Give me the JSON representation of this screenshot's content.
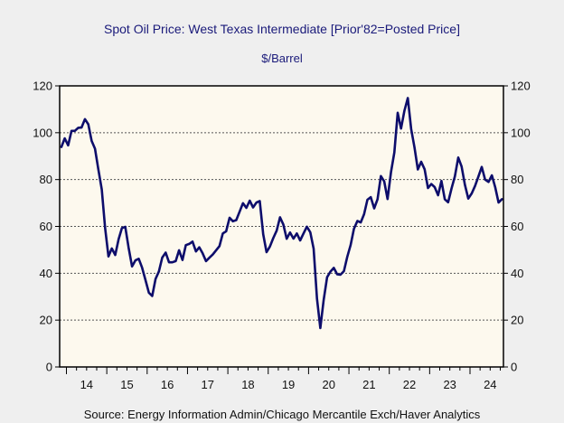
{
  "header": {
    "title": "Spot Oil Price: West Texas Intermediate [Prior'82=Posted Price]",
    "subtitle": "$/Barrel"
  },
  "footer": {
    "source": "Source:  Energy Information Admin/Chicago Mercantile Exch/Haver Analytics"
  },
  "colors": {
    "line": "#0d0d6b",
    "plot_background": "#fdf9ee",
    "page_background": "#efefef",
    "title_text": "#1a1a7a"
  },
  "chart_data": {
    "type": "line",
    "title": "Spot Oil Price: West Texas Intermediate [Prior'82=Posted Price]",
    "subtitle": "$/Barrel",
    "xlabel": "",
    "ylabel": "$/Barrel",
    "frequency": "monthly",
    "x_start": "2013-11",
    "ylim": [
      0,
      120
    ],
    "y_ticks": [
      0,
      20,
      40,
      60,
      80,
      100,
      120
    ],
    "y_tick_labels": [
      "0",
      "20",
      "40",
      "60",
      "80",
      "100",
      "120"
    ],
    "x_tick_labels": [
      "14",
      "15",
      "16",
      "17",
      "18",
      "19",
      "20",
      "21",
      "22",
      "23",
      "24"
    ],
    "x_tick_years": [
      2014,
      2015,
      2016,
      2017,
      2018,
      2019,
      2020,
      2021,
      2022,
      2023,
      2024
    ],
    "grid": "horizontal dashed",
    "dual_y_axis": true,
    "legend": "none",
    "series": [
      {
        "name": "WTI Spot Price",
        "values": [
          93.9,
          97.6,
          94.6,
          100.8,
          100.8,
          102.1,
          102.2,
          105.8,
          103.6,
          96.5,
          93.2,
          84.4,
          75.8,
          59.3,
          47.2,
          50.6,
          47.8,
          54.5,
          59.3,
          59.8,
          50.9,
          42.9,
          45.5,
          46.2,
          42.4,
          37.2,
          31.7,
          30.3,
          37.6,
          40.8,
          46.7,
          48.8,
          44.7,
          44.7,
          45.2,
          49.8,
          45.7,
          52.0,
          52.5,
          53.5,
          49.3,
          51.1,
          48.5,
          45.2,
          46.6,
          48.0,
          49.8,
          51.6,
          57.0,
          57.9,
          63.7,
          62.2,
          62.7,
          66.3,
          69.9,
          67.9,
          71.0,
          68.1,
          70.2,
          70.8,
          56.7,
          49.0,
          51.4,
          55.0,
          58.2,
          63.9,
          60.8,
          54.7,
          57.4,
          54.8,
          57.0,
          54.0,
          57.0,
          59.9,
          57.5,
          50.5,
          29.2,
          16.6,
          28.6,
          38.3,
          40.7,
          42.3,
          39.6,
          39.4,
          40.9,
          47.0,
          52.0,
          59.0,
          62.3,
          61.7,
          65.2,
          71.4,
          72.5,
          67.7,
          71.6,
          81.5,
          79.2,
          71.7,
          83.2,
          91.6,
          108.5,
          101.8,
          109.3,
          114.8,
          101.6,
          93.7,
          84.3,
          87.6,
          84.4,
          76.4,
          78.1,
          76.8,
          73.3,
          79.4,
          71.6,
          70.3,
          76.1,
          81.4,
          89.4,
          85.6,
          77.7,
          71.9,
          74.1,
          77.3,
          81.3,
          85.4,
          80.0,
          79.0,
          81.8,
          76.7,
          70.2,
          71.6
        ]
      }
    ]
  }
}
